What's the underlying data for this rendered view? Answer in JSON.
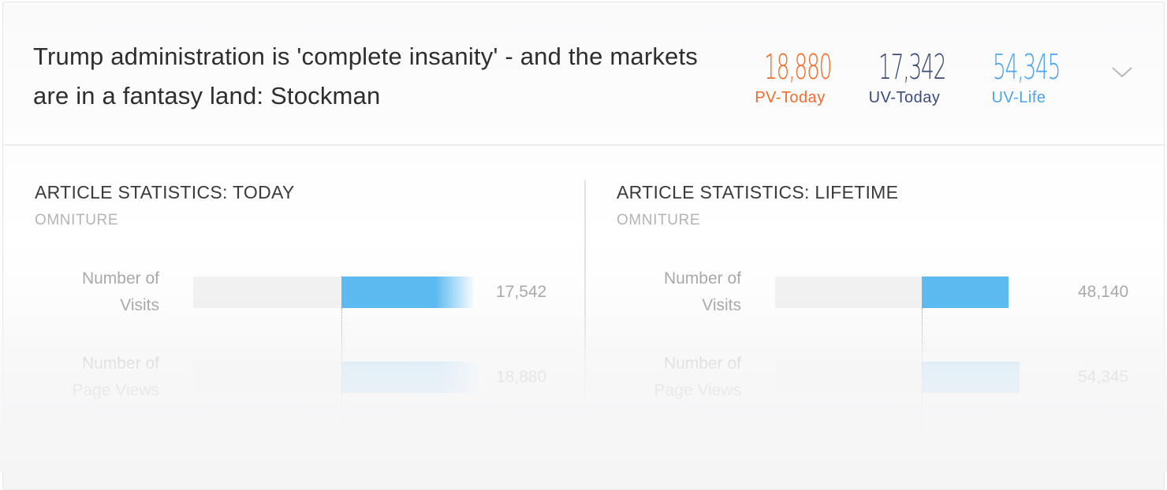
{
  "article": {
    "title": "Trump administration is 'complete insanity' - and the markets are in a fantasy land: Stockman"
  },
  "header_stats": [
    {
      "value": "18,880",
      "label": "PV-Today",
      "color": "#f26b2a"
    },
    {
      "value": "17,342",
      "label": "UV-Today",
      "color": "#3b4a79"
    },
    {
      "value": "54,345",
      "label": "UV-Life",
      "color": "#4ea3ea"
    }
  ],
  "expand_icon": "chevron-down-icon",
  "sections": [
    {
      "title": "ARTICLE STATISTICS: TODAY",
      "source": "OMNITURE",
      "rows": [
        {
          "label_line1": "Number of",
          "label_line2": "Visits",
          "value": 17542,
          "value_text": "17,542"
        },
        {
          "label_line1": "Number of",
          "label_line2": "Page Views",
          "value": 18880,
          "value_text": "18,880"
        }
      ]
    },
    {
      "title": "ARTICLE STATISTICS: LIFETIME",
      "source": "OMNITURE",
      "rows": [
        {
          "label_line1": "Number of",
          "label_line2": "Visits",
          "value": 48140,
          "value_text": "48,140"
        },
        {
          "label_line1": "Number of",
          "label_line2": "Page Views",
          "value": 54345,
          "value_text": "54,345"
        }
      ]
    }
  ],
  "colors": {
    "bar_primary": "#5cbaf0",
    "bar_secondary": "#a9d8f5",
    "bar_track": "#f1f1f2"
  }
}
